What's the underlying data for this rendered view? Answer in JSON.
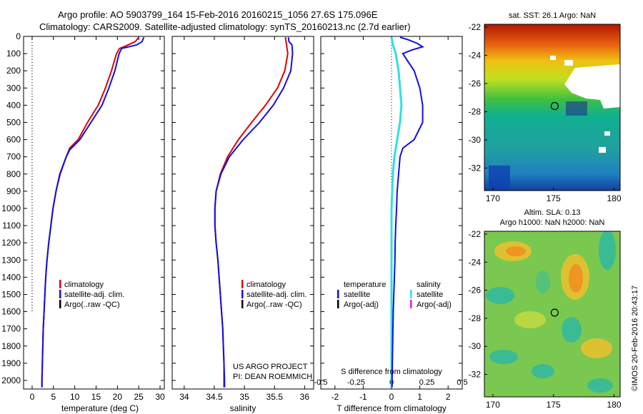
{
  "header": {
    "line1": "Argo profile: AO 5903799_164 15-Feb-2016 20160215_1056 27.6S 175.096E",
    "line2": "Climatology: CARS2009. Satellite-adjusted climatology: synTS_20160213.nc (2.7d earlier)"
  },
  "colors": {
    "climatology": "#e00000",
    "satellite": "#1010e0",
    "argo": "#000000",
    "sal_satellite": "#30e0e0",
    "sal_argo": "#e020e0"
  },
  "chart_data": [
    {
      "type": "line",
      "name": "temperature-profile",
      "xlabel": "temperature (deg C)",
      "ylabel": "",
      "xlim": [
        -2,
        31
      ],
      "ylim": [
        2050,
        0
      ],
      "y_inverted": true,
      "xticks": [
        0,
        5,
        10,
        15,
        20,
        25,
        30
      ],
      "yticks": [
        0,
        100,
        200,
        300,
        400,
        500,
        600,
        700,
        800,
        900,
        1000,
        1100,
        1200,
        1300,
        1400,
        1500,
        1600,
        1700,
        1800,
        1900,
        2000
      ],
      "series": [
        {
          "name": "climatology",
          "color": "#e00000",
          "points": [
            [
              25.0,
              5
            ],
            [
              24.2,
              30
            ],
            [
              22.0,
              55
            ],
            [
              20.5,
              70
            ],
            [
              19.8,
              100
            ],
            [
              18.6,
              200
            ],
            [
              17.2,
              300
            ],
            [
              15.5,
              400
            ],
            [
              13.0,
              500
            ],
            [
              10.8,
              600
            ],
            [
              8.8,
              650
            ],
            [
              8.0,
              700
            ],
            [
              6.6,
              800
            ],
            [
              5.6,
              900
            ],
            [
              4.9,
              1000
            ],
            [
              4.4,
              1100
            ],
            [
              3.9,
              1200
            ],
            [
              3.5,
              1300
            ],
            [
              3.2,
              1400
            ],
            [
              3.0,
              1500
            ],
            [
              2.8,
              1600
            ],
            [
              2.6,
              1700
            ],
            [
              2.5,
              1800
            ],
            [
              2.4,
              1900
            ],
            [
              2.3,
              2000
            ],
            [
              2.3,
              2040
            ]
          ]
        },
        {
          "name": "satellite-adj. clim.",
          "color": "#1010e0",
          "points": [
            [
              26.2,
              5
            ],
            [
              25.8,
              30
            ],
            [
              24.5,
              50
            ],
            [
              21.0,
              70
            ],
            [
              20.4,
              100
            ],
            [
              19.4,
              200
            ],
            [
              18.0,
              300
            ],
            [
              16.4,
              400
            ],
            [
              13.8,
              500
            ],
            [
              11.2,
              600
            ],
            [
              8.8,
              660
            ],
            [
              8.0,
              700
            ],
            [
              6.5,
              800
            ],
            [
              5.6,
              900
            ],
            [
              4.9,
              1000
            ],
            [
              4.4,
              1100
            ],
            [
              3.9,
              1200
            ],
            [
              3.5,
              1300
            ],
            [
              3.2,
              1400
            ],
            [
              3.0,
              1500
            ],
            [
              2.8,
              1600
            ],
            [
              2.6,
              1700
            ],
            [
              2.5,
              1800
            ],
            [
              2.4,
              1900
            ],
            [
              2.3,
              2000
            ],
            [
              2.3,
              2040
            ]
          ]
        },
        {
          "name": "Argo(..raw -QC)",
          "color": "#000000",
          "points": []
        }
      ],
      "reference_line_x": 0,
      "reference_line_to_depth": 1600,
      "legend": [
        "climatology",
        "satellite-adj. clim.",
        "Argo(..raw -QC)"
      ]
    },
    {
      "type": "line",
      "name": "salinity-profile",
      "xlabel": "salinity",
      "xlim": [
        33.8,
        36.15
      ],
      "ylim": [
        2050,
        0
      ],
      "y_inverted": true,
      "xticks": [
        34,
        34.5,
        35,
        35.5,
        36
      ],
      "series": [
        {
          "name": "climatology",
          "color": "#e00000",
          "points": [
            [
              35.68,
              5
            ],
            [
              35.7,
              50
            ],
            [
              35.72,
              100
            ],
            [
              35.67,
              200
            ],
            [
              35.55,
              300
            ],
            [
              35.35,
              400
            ],
            [
              35.12,
              500
            ],
            [
              34.9,
              600
            ],
            [
              34.72,
              700
            ],
            [
              34.6,
              800
            ],
            [
              34.53,
              900
            ],
            [
              34.51,
              1000
            ],
            [
              34.51,
              1100
            ],
            [
              34.53,
              1200
            ],
            [
              34.56,
              1300
            ],
            [
              34.58,
              1400
            ],
            [
              34.6,
              1500
            ],
            [
              34.62,
              1600
            ],
            [
              34.64,
              1700
            ],
            [
              34.65,
              1800
            ],
            [
              34.66,
              1900
            ],
            [
              34.66,
              2000
            ],
            [
              34.66,
              2040
            ]
          ]
        },
        {
          "name": "satellite-adj. clim.",
          "color": "#1010e0",
          "points": [
            [
              35.73,
              5
            ],
            [
              35.74,
              30
            ],
            [
              35.79,
              50
            ],
            [
              35.8,
              100
            ],
            [
              35.77,
              200
            ],
            [
              35.65,
              300
            ],
            [
              35.48,
              400
            ],
            [
              35.25,
              500
            ],
            [
              34.98,
              600
            ],
            [
              34.75,
              700
            ],
            [
              34.61,
              800
            ],
            [
              34.53,
              900
            ],
            [
              34.51,
              1000
            ],
            [
              34.51,
              1100
            ],
            [
              34.53,
              1200
            ],
            [
              34.56,
              1300
            ],
            [
              34.58,
              1400
            ],
            [
              34.6,
              1500
            ],
            [
              34.62,
              1600
            ],
            [
              34.64,
              1700
            ],
            [
              34.65,
              1800
            ],
            [
              34.66,
              1900
            ],
            [
              34.67,
              2000
            ],
            [
              34.67,
              2040
            ]
          ]
        },
        {
          "name": "Argo(..raw -QC)",
          "color": "#000000",
          "points": []
        }
      ],
      "legend": [
        "climatology",
        "satellite-adj. clim.",
        "Argo(..raw -QC)"
      ],
      "annotations": [
        "US ARGO PROJECT",
        "PI: DEAN ROEMMICH"
      ]
    },
    {
      "type": "line",
      "name": "difference-profile",
      "xlabel": "T difference from climatology",
      "xlabel_top": "S difference from climatology",
      "xlim": [
        -2.5,
        2.5
      ],
      "ylim": [
        2050,
        0
      ],
      "y_inverted": true,
      "xticks": [
        -2,
        -1,
        0,
        1,
        2
      ],
      "sticks": [
        -0.5,
        -0.25,
        0,
        0.25,
        0.5
      ],
      "sticks_labels": [
        "-0.5",
        "-0.25",
        "0",
        "0.25",
        "0.5"
      ],
      "series": [
        {
          "name": "temperature satellite",
          "color": "#1010e0",
          "points": [
            [
              0.3,
              5
            ],
            [
              0.6,
              20
            ],
            [
              0.9,
              40
            ],
            [
              1.1,
              60
            ],
            [
              0.7,
              80
            ],
            [
              0.4,
              100
            ],
            [
              0.8,
              200
            ],
            [
              1.0,
              300
            ],
            [
              1.1,
              400
            ],
            [
              1.1,
              500
            ],
            [
              0.8,
              600
            ],
            [
              0.4,
              650
            ],
            [
              0.3,
              700
            ],
            [
              0.25,
              800
            ],
            [
              0.2,
              900
            ],
            [
              0.18,
              1000
            ],
            [
              0.15,
              1100
            ],
            [
              0.13,
              1200
            ],
            [
              0.12,
              1300
            ],
            [
              0.1,
              1400
            ],
            [
              0.08,
              1500
            ],
            [
              0.06,
              1600
            ],
            [
              0.05,
              1700
            ],
            [
              0.04,
              1800
            ],
            [
              0.03,
              1900
            ],
            [
              0.02,
              2000
            ],
            [
              0.02,
              2040
            ]
          ]
        },
        {
          "name": "salinity satellite",
          "color": "#30e0e0",
          "points": [
            [
              0.0,
              5
            ],
            [
              0.01,
              50
            ],
            [
              0.03,
              100
            ],
            [
              0.05,
              200
            ],
            [
              0.06,
              300
            ],
            [
              0.07,
              400
            ],
            [
              0.06,
              500
            ],
            [
              0.04,
              600
            ],
            [
              0.02,
              700
            ],
            [
              0.01,
              800
            ],
            [
              0.005,
              900
            ],
            [
              0.0,
              1000
            ],
            [
              0.0,
              2040
            ]
          ]
        },
        {
          "name": "Argo(-adj)",
          "color": "#000000",
          "points": []
        }
      ],
      "legend": {
        "temperature_title": "temperature",
        "temperature_items": [
          "satellite",
          "Argo(-adj)"
        ],
        "salinity_title": "salinity",
        "salinity_items": [
          "satellite",
          "Argo(-adj)"
        ]
      }
    },
    {
      "type": "heatmap",
      "name": "sst-map",
      "title": "sat. SST: 26.1  Argo: NaN",
      "xlim": [
        169.3,
        180.5
      ],
      "ylim": [
        -33.6,
        -21.8
      ],
      "xticks": [
        170,
        175,
        180
      ],
      "yticks": [
        -22,
        -24,
        -26,
        -28,
        -30,
        -32
      ],
      "marker": {
        "lon": 175.1,
        "lat": -27.6
      }
    },
    {
      "type": "heatmap",
      "name": "sla-map",
      "title_line1": "Altim. SLA: 0.13",
      "title_line2": "Argo h1000: NaN h2000: NaN",
      "xlim": [
        169.3,
        180.5
      ],
      "ylim": [
        -33.6,
        -21.8
      ],
      "xticks": [
        170,
        175,
        180
      ],
      "yticks": [
        -22,
        -24,
        -26,
        -28,
        -30,
        -32
      ],
      "marker": {
        "lon": 175.1,
        "lat": -27.6
      }
    }
  ],
  "credit": "©IMOS 20-Feb-2016 20:43:17"
}
